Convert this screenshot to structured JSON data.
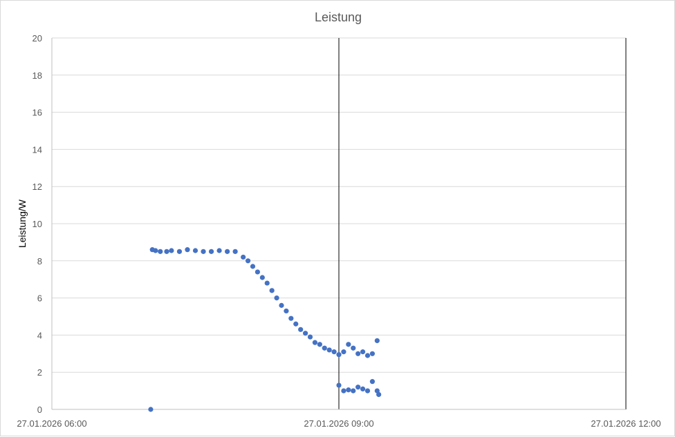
{
  "chart_data": {
    "type": "scatter",
    "title": "Leistung",
    "xlabel": "",
    "ylabel": "Leistung/W",
    "xlim": [
      "27.01.2026 06:00",
      "27.01.2026 12:00"
    ],
    "ylim": [
      0,
      20
    ],
    "y_ticks": [
      "0",
      "2",
      "4",
      "6",
      "8",
      "10",
      "12",
      "14",
      "16",
      "18",
      "20"
    ],
    "x_ticks": [
      "27.01.2026 06:00",
      "27.01.2026 09:00",
      "27.01.2026 12:00"
    ],
    "grid": "horizontal",
    "vertical_gridlines": [
      "27.01.2026 09:00",
      "27.01.2026 12:00"
    ],
    "legend": "none",
    "series_color": "#4472c4",
    "series": [
      {
        "x": [
          "27.01.2026 07:02",
          "27.01.2026 07:03",
          "27.01.2026 07:05",
          "27.01.2026 07:08",
          "27.01.2026 07:12",
          "27.01.2026 07:15",
          "27.01.2026 07:20",
          "27.01.2026 07:25",
          "27.01.2026 07:30",
          "27.01.2026 07:35",
          "27.01.2026 07:40",
          "27.01.2026 07:45",
          "27.01.2026 07:50",
          "27.01.2026 07:55",
          "27.01.2026 08:00",
          "27.01.2026 08:03",
          "27.01.2026 08:06",
          "27.01.2026 08:09",
          "27.01.2026 08:12",
          "27.01.2026 08:15",
          "27.01.2026 08:18",
          "27.01.2026 08:21",
          "27.01.2026 08:24",
          "27.01.2026 08:27",
          "27.01.2026 08:30",
          "27.01.2026 08:33",
          "27.01.2026 08:36",
          "27.01.2026 08:39",
          "27.01.2026 08:42",
          "27.01.2026 08:45",
          "27.01.2026 08:48",
          "27.01.2026 08:51",
          "27.01.2026 08:54",
          "27.01.2026 08:57",
          "27.01.2026 09:00",
          "27.01.2026 09:03",
          "27.01.2026 09:06",
          "27.01.2026 09:09",
          "27.01.2026 09:12",
          "27.01.2026 09:15",
          "27.01.2026 09:18",
          "27.01.2026 09:21",
          "27.01.2026 09:24",
          "27.01.2026 09:00",
          "27.01.2026 09:03",
          "27.01.2026 09:06",
          "27.01.2026 09:09",
          "27.01.2026 09:12",
          "27.01.2026 09:15",
          "27.01.2026 09:18",
          "27.01.2026 09:21",
          "27.01.2026 09:24",
          "27.01.2026 09:25"
        ],
        "y": [
          0,
          8.6,
          8.55,
          8.5,
          8.5,
          8.55,
          8.5,
          8.6,
          8.55,
          8.5,
          8.5,
          8.55,
          8.5,
          8.5,
          8.2,
          8.0,
          7.7,
          7.4,
          7.1,
          6.8,
          6.4,
          6.0,
          5.6,
          5.3,
          4.9,
          4.6,
          4.3,
          4.1,
          3.9,
          3.6,
          3.5,
          3.3,
          3.2,
          3.1,
          2.95,
          3.1,
          3.5,
          3.3,
          3.0,
          3.1,
          2.9,
          3.0,
          3.7,
          1.3,
          1.0,
          1.05,
          1.0,
          1.2,
          1.1,
          1.0,
          1.5,
          1.0,
          0.8
        ]
      }
    ]
  }
}
